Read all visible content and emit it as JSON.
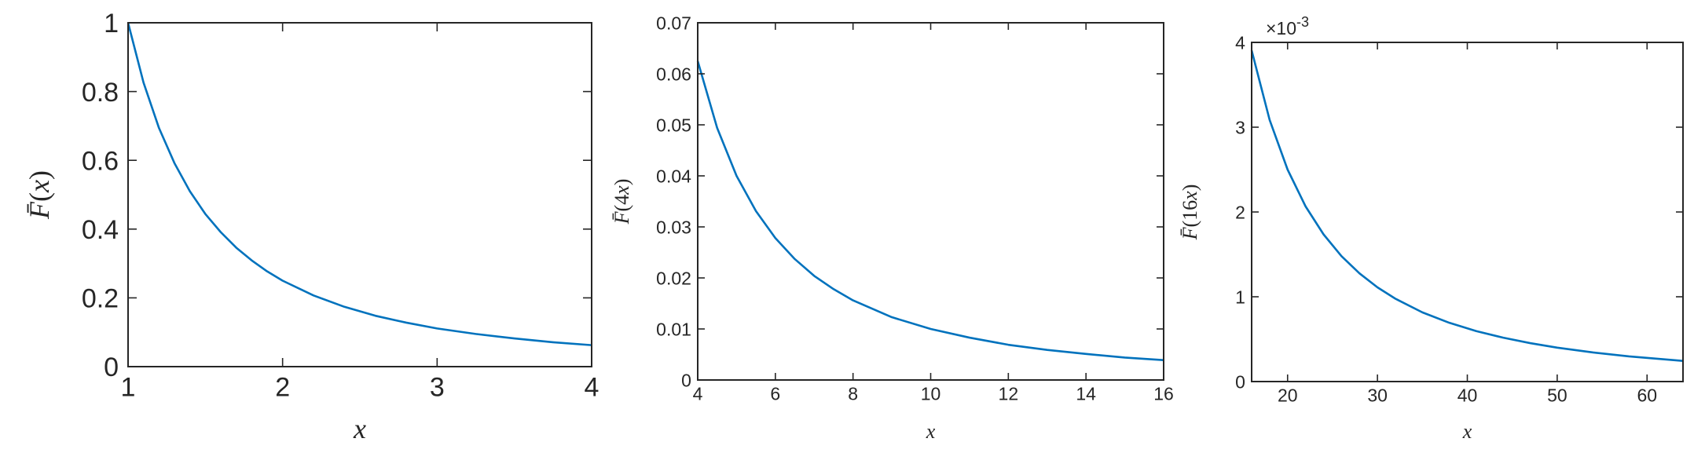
{
  "chart_data": [
    {
      "type": "line",
      "xlabel": "x",
      "ylabel": "F̄(x)",
      "xlim": [
        1,
        4
      ],
      "ylim": [
        0,
        1
      ],
      "xticks": [
        1,
        2,
        3,
        4
      ],
      "yticks": [
        0,
        0.2,
        0.4,
        0.6,
        0.8,
        1
      ],
      "xtick_labels": [
        "1",
        "2",
        "3",
        "4"
      ],
      "ytick_labels": [
        "0",
        "0.2",
        "0.4",
        "0.6",
        "0.8",
        "1"
      ],
      "exponent_label": "",
      "grid": false,
      "series": [
        {
          "x": [
            1,
            1.1,
            1.2,
            1.3,
            1.4,
            1.5,
            1.6,
            1.7,
            1.8,
            1.9,
            2,
            2.2,
            2.4,
            2.6,
            2.8,
            3,
            3.25,
            3.5,
            3.75,
            4
          ],
          "values": [
            1,
            0.826,
            0.694,
            0.592,
            0.51,
            0.444,
            0.391,
            0.346,
            0.309,
            0.277,
            0.25,
            0.207,
            0.174,
            0.148,
            0.128,
            0.111,
            0.095,
            0.082,
            0.071,
            0.0625
          ],
          "color": "#0072BD"
        }
      ]
    },
    {
      "type": "line",
      "xlabel": "x",
      "ylabel": "F̄(4x)",
      "xlim": [
        4,
        16
      ],
      "ylim": [
        0,
        0.07
      ],
      "xticks": [
        4,
        6,
        8,
        10,
        12,
        14,
        16
      ],
      "yticks": [
        0,
        0.01,
        0.02,
        0.03,
        0.04,
        0.05,
        0.06,
        0.07
      ],
      "xtick_labels": [
        "4",
        "6",
        "8",
        "10",
        "12",
        "14",
        "16"
      ],
      "ytick_labels": [
        "0",
        "0.01",
        "0.02",
        "0.03",
        "0.04",
        "0.05",
        "0.06",
        "0.07"
      ],
      "exponent_label": "",
      "grid": false,
      "series": [
        {
          "x": [
            4,
            4.5,
            5,
            5.5,
            6,
            6.5,
            7,
            7.5,
            8,
            9,
            10,
            11,
            12,
            13,
            14,
            15,
            16
          ],
          "values": [
            0.0625,
            0.0494,
            0.04,
            0.0331,
            0.0278,
            0.0237,
            0.0204,
            0.0178,
            0.0156,
            0.0123,
            0.01,
            0.0083,
            0.0069,
            0.0059,
            0.0051,
            0.0044,
            0.0039
          ],
          "color": "#0072BD"
        }
      ]
    },
    {
      "type": "line",
      "xlabel": "x",
      "ylabel": "F̄(16x)",
      "xlim": [
        16,
        64
      ],
      "ylim": [
        0,
        4
      ],
      "xticks": [
        16,
        20,
        30,
        40,
        50,
        60,
        64
      ],
      "yticks": [
        0,
        1,
        2,
        3,
        4
      ],
      "xtick_labels": [
        "",
        "20",
        "30",
        "40",
        "50",
        "60",
        ""
      ],
      "ytick_labels": [
        "0",
        "1",
        "2",
        "3",
        "4"
      ],
      "exponent_label": "×10-3",
      "grid": false,
      "series": [
        {
          "x": [
            16,
            18,
            20,
            22,
            24,
            26,
            28,
            30,
            32,
            35,
            38,
            41,
            44,
            47,
            50,
            54,
            58,
            64
          ],
          "values": [
            3.906,
            3.086,
            2.5,
            2.066,
            1.736,
            1.479,
            1.276,
            1.111,
            0.977,
            0.816,
            0.693,
            0.595,
            0.517,
            0.453,
            0.4,
            0.343,
            0.297,
            0.244
          ],
          "color": "#0072BD"
        }
      ]
    }
  ]
}
